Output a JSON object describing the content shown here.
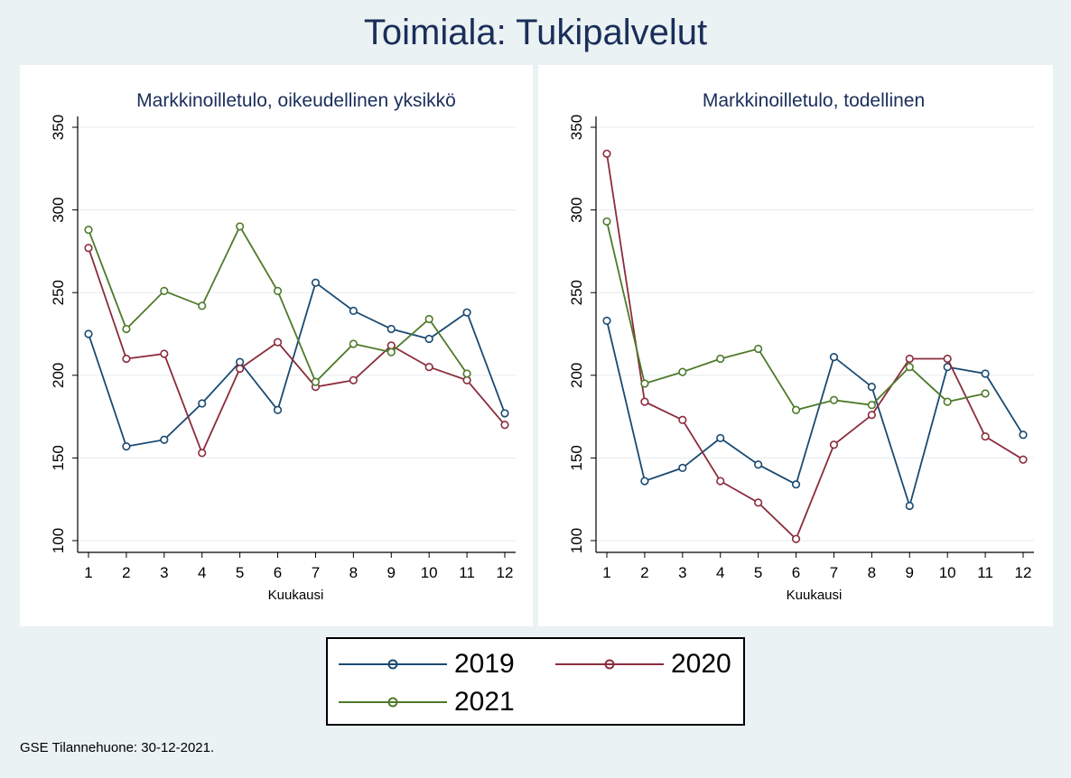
{
  "title": "Toimiala: Tukipalvelut",
  "note": "GSE Tilannehuone: 30-12-2021.",
  "colors": {
    "2019": "#1a4a72",
    "2020": "#8b2c3c",
    "2021": "#4e7a2a",
    "background": "#eaf2f3",
    "grid": "#e6ecee"
  },
  "legend": [
    {
      "name": "2019",
      "color": "#1a4a72"
    },
    {
      "name": "2020",
      "color": "#8b2c3c"
    },
    {
      "name": "2021",
      "color": "#4e7a2a"
    }
  ],
  "chart_data": [
    {
      "type": "line",
      "title": "Markkinoilletulo, oikeudellinen yksikkö",
      "xlabel": "Kuukausi",
      "ylabel": "",
      "x": [
        1,
        2,
        3,
        4,
        5,
        6,
        7,
        8,
        9,
        10,
        11,
        12
      ],
      "ylim": [
        100,
        350
      ],
      "yticks": [
        100,
        150,
        200,
        250,
        300,
        350
      ],
      "grid": true,
      "series": [
        {
          "name": "2019",
          "values": [
            225,
            157,
            161,
            183,
            208,
            179,
            256,
            239,
            228,
            222,
            238,
            177
          ]
        },
        {
          "name": "2020",
          "values": [
            277,
            210,
            213,
            153,
            204,
            220,
            193,
            197,
            218,
            205,
            197,
            170
          ]
        },
        {
          "name": "2021",
          "values": [
            288,
            228,
            251,
            242,
            290,
            251,
            196,
            219,
            214,
            234,
            201,
            null
          ]
        }
      ]
    },
    {
      "type": "line",
      "title": "Markkinoilletulo, todellinen",
      "xlabel": "Kuukausi",
      "ylabel": "",
      "x": [
        1,
        2,
        3,
        4,
        5,
        6,
        7,
        8,
        9,
        10,
        11,
        12
      ],
      "ylim": [
        100,
        350
      ],
      "yticks": [
        100,
        150,
        200,
        250,
        300,
        350
      ],
      "grid": true,
      "series": [
        {
          "name": "2019",
          "values": [
            233,
            136,
            144,
            162,
            146,
            134,
            211,
            193,
            121,
            205,
            201,
            164
          ]
        },
        {
          "name": "2020",
          "values": [
            334,
            184,
            173,
            136,
            123,
            101,
            158,
            176,
            210,
            210,
            163,
            149
          ]
        },
        {
          "name": "2021",
          "values": [
            293,
            195,
            202,
            210,
            216,
            179,
            185,
            182,
            205,
            184,
            189,
            null
          ]
        }
      ]
    }
  ]
}
